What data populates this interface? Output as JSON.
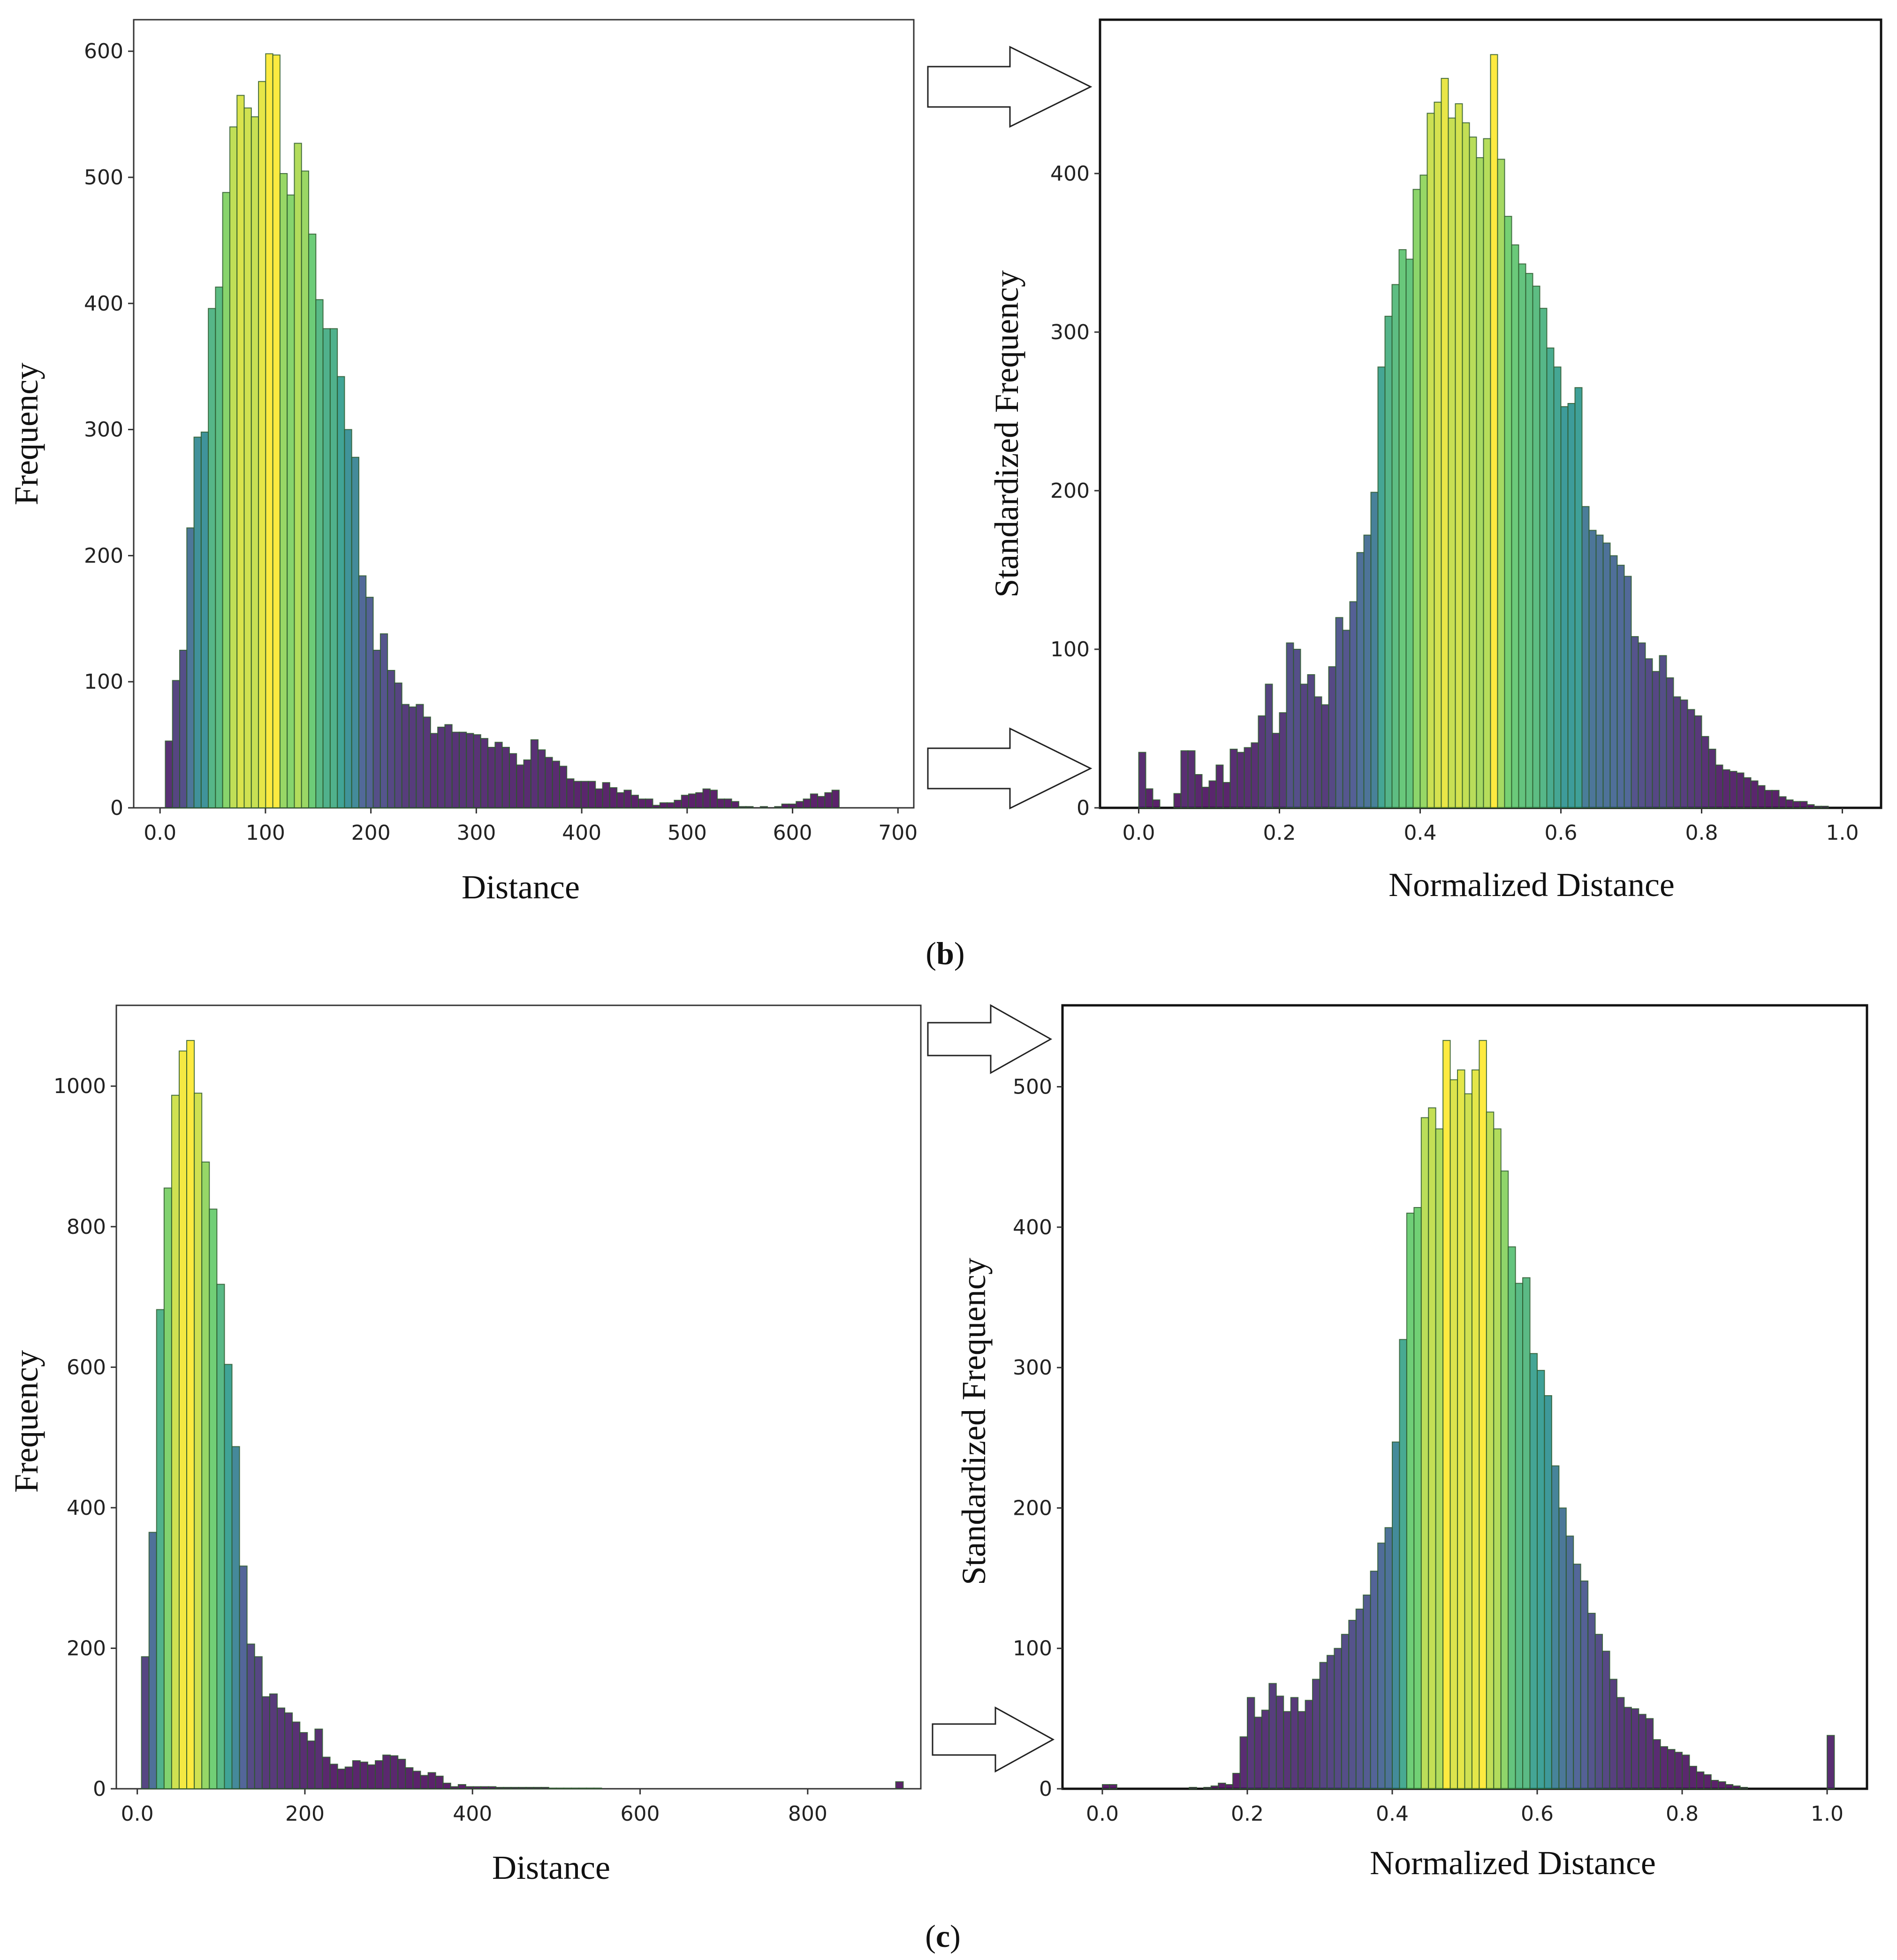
{
  "panel_labels": [
    {
      "open": "(",
      "letter": "b",
      "close": ")"
    },
    {
      "open": "(",
      "letter": "c",
      "close": ")"
    }
  ],
  "chart_data": [
    {
      "id": "b-raw",
      "type": "bar",
      "title": "",
      "xlabel": "Distance",
      "ylabel": "Frequency",
      "xlim": [
        -25,
        715
      ],
      "ylim": [
        0,
        625
      ],
      "xticks": [
        0,
        100,
        200,
        300,
        400,
        500,
        600,
        700
      ],
      "xtick_labels": [
        "0.0",
        "100",
        "200",
        "300",
        "400",
        "500",
        "600",
        "700"
      ],
      "yticks": [
        0,
        100,
        200,
        300,
        400,
        500,
        600
      ],
      "ytick_labels": [
        "0",
        "100",
        "200",
        "300",
        "400",
        "500",
        "600"
      ],
      "bin_start": 5,
      "bin_width": 6.8,
      "values": [
        53,
        101,
        125,
        222,
        294,
        298,
        396,
        413,
        488,
        540,
        565,
        555,
        548,
        576,
        598,
        597,
        503,
        486,
        527,
        505,
        455,
        403,
        380,
        380,
        342,
        300,
        278,
        184,
        167,
        125,
        138,
        109,
        99,
        82,
        80,
        82,
        72,
        59,
        64,
        66,
        60,
        60,
        59,
        58,
        55,
        48,
        52,
        48,
        43,
        34,
        38,
        54,
        46,
        40,
        37,
        33,
        23,
        21,
        21,
        21,
        15,
        20,
        16,
        12,
        14,
        10,
        7,
        7,
        2,
        4,
        4,
        6,
        10,
        11,
        12,
        15,
        14,
        7,
        7,
        5,
        1,
        1,
        0,
        1,
        0,
        1,
        3,
        3,
        5,
        7,
        11,
        9,
        12,
        14
      ]
    },
    {
      "id": "b-norm",
      "type": "bar",
      "title": "",
      "xlabel": "Normalized Distance",
      "ylabel": "Standardized Frequency",
      "xlim": [
        -0.055,
        1.055
      ],
      "ylim": [
        0,
        497
      ],
      "xticks": [
        0.0,
        0.2,
        0.4,
        0.6,
        0.8,
        1.0
      ],
      "xtick_labels": [
        "0.0",
        "0.2",
        "0.4",
        "0.6",
        "0.8",
        "1.0"
      ],
      "yticks": [
        0,
        100,
        200,
        300,
        400
      ],
      "ytick_labels": [
        "0",
        "100",
        "200",
        "300",
        "400"
      ],
      "bin_start": 0,
      "bin_width": 0.01,
      "values": [
        35,
        12,
        5,
        0,
        0,
        9,
        36,
        36,
        21,
        13,
        17,
        27,
        16,
        37,
        35,
        38,
        41,
        58,
        78,
        47,
        60,
        104,
        100,
        78,
        84,
        70,
        65,
        89,
        120,
        112,
        130,
        161,
        172,
        199,
        278,
        310,
        330,
        352,
        346,
        390,
        399,
        438,
        445,
        460,
        435,
        444,
        432,
        423,
        410,
        422,
        475,
        409,
        373,
        355,
        343,
        337,
        329,
        315,
        290,
        278,
        253,
        255,
        265,
        190,
        175,
        172,
        167,
        159,
        153,
        146,
        108,
        104,
        94,
        86,
        96,
        82,
        70,
        68,
        62,
        58,
        45,
        37,
        27,
        24,
        23,
        22,
        19,
        17,
        14,
        11,
        11,
        7,
        5,
        4,
        4,
        2,
        1,
        1,
        0,
        0
      ]
    },
    {
      "id": "c-raw",
      "type": "bar",
      "title": "",
      "xlabel": "Distance",
      "ylabel": "Frequency",
      "xlim": [
        -25,
        935
      ],
      "ylim": [
        0,
        1115
      ],
      "xticks": [
        0,
        200,
        400,
        600,
        800
      ],
      "xtick_labels": [
        "0.0",
        "200",
        "400",
        "600",
        "800"
      ],
      "yticks": [
        0,
        200,
        400,
        600,
        800,
        1000
      ],
      "yticks_unused": [],
      "ytick_labels": [
        "0",
        "200",
        "400",
        "600",
        "800",
        "1000"
      ],
      "bin_start": 5,
      "bin_width": 9.0,
      "values": [
        188,
        365,
        682,
        855,
        987,
        1050,
        1065,
        990,
        892,
        825,
        718,
        604,
        487,
        317,
        206,
        188,
        131,
        135,
        115,
        108,
        95,
        80,
        68,
        85,
        45,
        35,
        28,
        31,
        40,
        38,
        34,
        40,
        48,
        47,
        42,
        30,
        25,
        19,
        23,
        18,
        8,
        3,
        6,
        3,
        3,
        3,
        3,
        2,
        2,
        2,
        2,
        2,
        2,
        2,
        1,
        1,
        1,
        1,
        1,
        1,
        1,
        0,
        0,
        0,
        0,
        0,
        0,
        0,
        0,
        0,
        0,
        0,
        0,
        0,
        0,
        0,
        0,
        0,
        0,
        0,
        0,
        0,
        0,
        0,
        0,
        0,
        0,
        0,
        0,
        0,
        0,
        0,
        0,
        0,
        0,
        0,
        0,
        0,
        0,
        0,
        10
      ]
    },
    {
      "id": "c-norm",
      "type": "bar",
      "title": "",
      "xlabel": "Normalized Distance",
      "ylabel": "Standardized Frequency",
      "xlim": [
        -0.055,
        1.055
      ],
      "ylim": [
        0,
        558
      ],
      "xticks": [
        0.0,
        0.2,
        0.4,
        0.6,
        0.8,
        1.0
      ],
      "xtick_labels": [
        "0.0",
        "0.2",
        "0.4",
        "0.6",
        "0.8",
        "1.0"
      ],
      "yticks": [
        0,
        100,
        200,
        300,
        400,
        500
      ],
      "ytick_labels": [
        "0",
        "100",
        "200",
        "300",
        "400",
        "500"
      ],
      "bin_start": 0,
      "bin_width": 0.01,
      "values": [
        3,
        3,
        0,
        0,
        0,
        0,
        0,
        0,
        0,
        0,
        0,
        0,
        1,
        0,
        1,
        2,
        4,
        3,
        11,
        37,
        65,
        51,
        56,
        75,
        66,
        55,
        65,
        55,
        63,
        78,
        90,
        95,
        100,
        110,
        120,
        128,
        138,
        155,
        175,
        186,
        247,
        320,
        410,
        414,
        478,
        485,
        470,
        533,
        505,
        512,
        495,
        512,
        533,
        482,
        470,
        440,
        386,
        360,
        364,
        310,
        298,
        280,
        230,
        200,
        180,
        160,
        148,
        125,
        110,
        98,
        78,
        65,
        58,
        57,
        53,
        50,
        35,
        30,
        28,
        26,
        24,
        16,
        12,
        10,
        6,
        5,
        3,
        2,
        1,
        0,
        0,
        0,
        0,
        0,
        0,
        0,
        0,
        0,
        0,
        0,
        38
      ]
    }
  ],
  "viridis_stops": [
    "#440154",
    "#3b528b",
    "#21918c",
    "#5ec962",
    "#fde725"
  ]
}
